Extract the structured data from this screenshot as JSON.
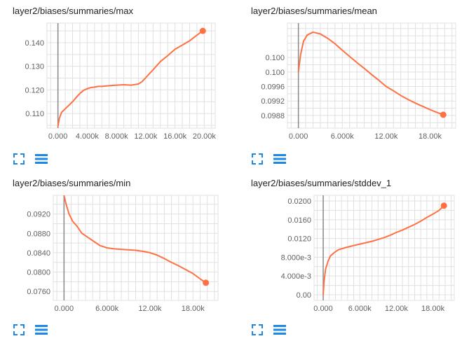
{
  "colors": {
    "series": "#ff7043",
    "grid": "#e0e0e0",
    "axis": "#888888",
    "icon": "#1e88e5"
  },
  "icons": {
    "expand": "fullscreen-icon",
    "data": "list-icon"
  },
  "chart_data": [
    {
      "type": "line",
      "title": "layer2/biases/summaries/max",
      "xlim": [
        -1500,
        21500
      ],
      "ylim": [
        0.1038,
        0.1483
      ],
      "x_ticks": [
        0,
        4000,
        8000,
        12000,
        16000,
        20000
      ],
      "x_tick_labels": [
        "0.000",
        "4.000k",
        "8.000k",
        "12.00k",
        "16.00k",
        "20.00k"
      ],
      "y_ticks": [
        0.11,
        0.12,
        0.13,
        0.14
      ],
      "y_tick_labels": [
        "0.110",
        "0.120",
        "0.130",
        "0.140"
      ],
      "grid": true,
      "series": [
        {
          "x": [
            0,
            200,
            500,
            1000,
            1500,
            2000,
            2500,
            3000,
            3500,
            4000,
            4500,
            5000,
            5500,
            6000,
            7000,
            8000,
            9000,
            10000,
            11000,
            11500,
            12000,
            13000,
            14000,
            15000,
            16000,
            17000,
            18000,
            19000,
            19800
          ],
          "y": [
            0.1045,
            0.108,
            0.1105,
            0.112,
            0.1135,
            0.115,
            0.1168,
            0.1185,
            0.1198,
            0.1205,
            0.121,
            0.1212,
            0.1215,
            0.1215,
            0.1218,
            0.122,
            0.1222,
            0.122,
            0.1225,
            0.1235,
            0.1252,
            0.1285,
            0.132,
            0.1345,
            0.1372,
            0.139,
            0.1408,
            0.1432,
            0.145
          ]
        }
      ]
    },
    {
      "type": "line",
      "title": "layer2/biases/summaries/mean",
      "xlim": [
        -1500,
        21500
      ],
      "ylim": [
        0.09845,
        0.10135
      ],
      "x_ticks": [
        0,
        6000,
        12000,
        18000
      ],
      "x_tick_labels": [
        "0.000",
        "6.000k",
        "12.00k",
        "18.00k"
      ],
      "y_ticks": [
        0.0988,
        0.0992,
        0.0996,
        0.1,
        0.1004
      ],
      "y_tick_labels": [
        "0.0988",
        "0.0992",
        "0.0996",
        "0.100",
        "0.100"
      ],
      "grid": true,
      "series": [
        {
          "x": [
            0,
            300,
            700,
            1200,
            2000,
            3000,
            4000,
            5000,
            6000,
            7000,
            8000,
            9000,
            10000,
            11000,
            12000,
            13000,
            14000,
            15000,
            16000,
            17000,
            18000,
            19000,
            19800
          ],
          "y": [
            0.1,
            0.10048,
            0.10085,
            0.10102,
            0.1011,
            0.10105,
            0.10093,
            0.10078,
            0.1006,
            0.10043,
            0.10026,
            0.1001,
            0.09993,
            0.09977,
            0.0996,
            0.09948,
            0.09935,
            0.09924,
            0.09914,
            0.09905,
            0.09896,
            0.09888,
            0.09882
          ]
        }
      ]
    },
    {
      "type": "line",
      "title": "layer2/biases/summaries/min",
      "xlim": [
        -1500,
        21500
      ],
      "ylim": [
        0.07415,
        0.09585
      ],
      "x_ticks": [
        0,
        6000,
        12000,
        18000
      ],
      "x_tick_labels": [
        "0.000",
        "6.000k",
        "12.00k",
        "18.00k"
      ],
      "y_ticks": [
        0.076,
        0.08,
        0.084,
        0.088,
        0.092
      ],
      "y_tick_labels": [
        "0.0760",
        "0.0800",
        "0.0840",
        "0.0880",
        "0.0920"
      ],
      "grid": true,
      "series": [
        {
          "x": [
            0,
            300,
            700,
            1200,
            1800,
            2500,
            3000,
            4000,
            5000,
            6000,
            7000,
            8000,
            9000,
            10000,
            11000,
            12000,
            13000,
            14000,
            15000,
            16000,
            17000,
            18000,
            19000,
            19800
          ],
          "y": [
            0.0958,
            0.094,
            0.092,
            0.0905,
            0.0895,
            0.088,
            0.0875,
            0.0865,
            0.0855,
            0.085,
            0.0848,
            0.0847,
            0.0846,
            0.0845,
            0.0843,
            0.084,
            0.0835,
            0.0828,
            0.082,
            0.0813,
            0.0805,
            0.0797,
            0.0786,
            0.0778
          ]
        }
      ]
    },
    {
      "type": "line",
      "title": "layer2/biases/summaries/stddev_1",
      "xlim": [
        -1500,
        21500
      ],
      "ylim": [
        -0.0012,
        0.0212
      ],
      "x_ticks": [
        0,
        6000,
        12000,
        18000
      ],
      "x_tick_labels": [
        "0.000",
        "6.000k",
        "12.00k",
        "18.00k"
      ],
      "y_ticks": [
        0,
        0.004,
        0.008,
        0.012,
        0.016,
        0.02
      ],
      "y_tick_labels": [
        "0.00",
        "4.000e-3",
        "8.000e-3",
        "0.0120",
        "0.0160",
        "0.0200"
      ],
      "grid": true,
      "series": [
        {
          "x": [
            0,
            150,
            400,
            800,
            1200,
            1800,
            2500,
            3500,
            5000,
            6000,
            7000,
            8000,
            9000,
            10000,
            11000,
            12000,
            13000,
            14000,
            15000,
            16000,
            17000,
            18000,
            19000,
            19800
          ],
          "y": [
            0.0,
            0.003,
            0.0055,
            0.0072,
            0.0083,
            0.009,
            0.0096,
            0.01,
            0.0105,
            0.0108,
            0.0111,
            0.0114,
            0.0118,
            0.0122,
            0.0127,
            0.0133,
            0.0138,
            0.0144,
            0.015,
            0.0157,
            0.0165,
            0.0172,
            0.018,
            0.019
          ]
        }
      ]
    }
  ]
}
